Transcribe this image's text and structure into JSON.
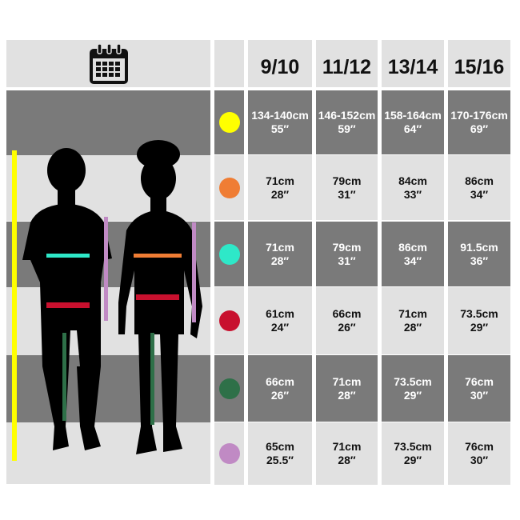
{
  "header": {
    "icon": "calendar-icon",
    "sizes": [
      "9/10",
      "11/12",
      "13/14",
      "15/16"
    ]
  },
  "rows": [
    {
      "measurement": "height",
      "color": "#ffff00",
      "values": [
        [
          "134-140cm",
          "55″"
        ],
        [
          "146-152cm",
          "59″"
        ],
        [
          "158-164cm",
          "64″"
        ],
        [
          "170-176cm",
          "69″"
        ]
      ]
    },
    {
      "measurement": "chest-girl",
      "color": "#ef7d34",
      "values": [
        [
          "71cm",
          "28″"
        ],
        [
          "79cm",
          "31″"
        ],
        [
          "84cm",
          "33″"
        ],
        [
          "86cm",
          "34″"
        ]
      ]
    },
    {
      "measurement": "chest-boy",
      "color": "#2ee8c8",
      "values": [
        [
          "71cm",
          "28″"
        ],
        [
          "79cm",
          "31″"
        ],
        [
          "86cm",
          "34″"
        ],
        [
          "91.5cm",
          "36″"
        ]
      ]
    },
    {
      "measurement": "waist",
      "color": "#c8102e",
      "values": [
        [
          "61cm",
          "24″"
        ],
        [
          "66cm",
          "26″"
        ],
        [
          "71cm",
          "28″"
        ],
        [
          "73.5cm",
          "29″"
        ]
      ]
    },
    {
      "measurement": "inside-leg",
      "color": "#2e7048",
      "values": [
        [
          "66cm",
          "26″"
        ],
        [
          "71cm",
          "28″"
        ],
        [
          "73.5cm",
          "29″"
        ],
        [
          "76cm",
          "30″"
        ]
      ]
    },
    {
      "measurement": "arm-length",
      "color": "#c08ac4",
      "values": [
        [
          "65cm",
          "25.5″"
        ],
        [
          "71cm",
          "28″"
        ],
        [
          "73.5cm",
          "29″"
        ],
        [
          "76cm",
          "30″"
        ]
      ]
    }
  ]
}
